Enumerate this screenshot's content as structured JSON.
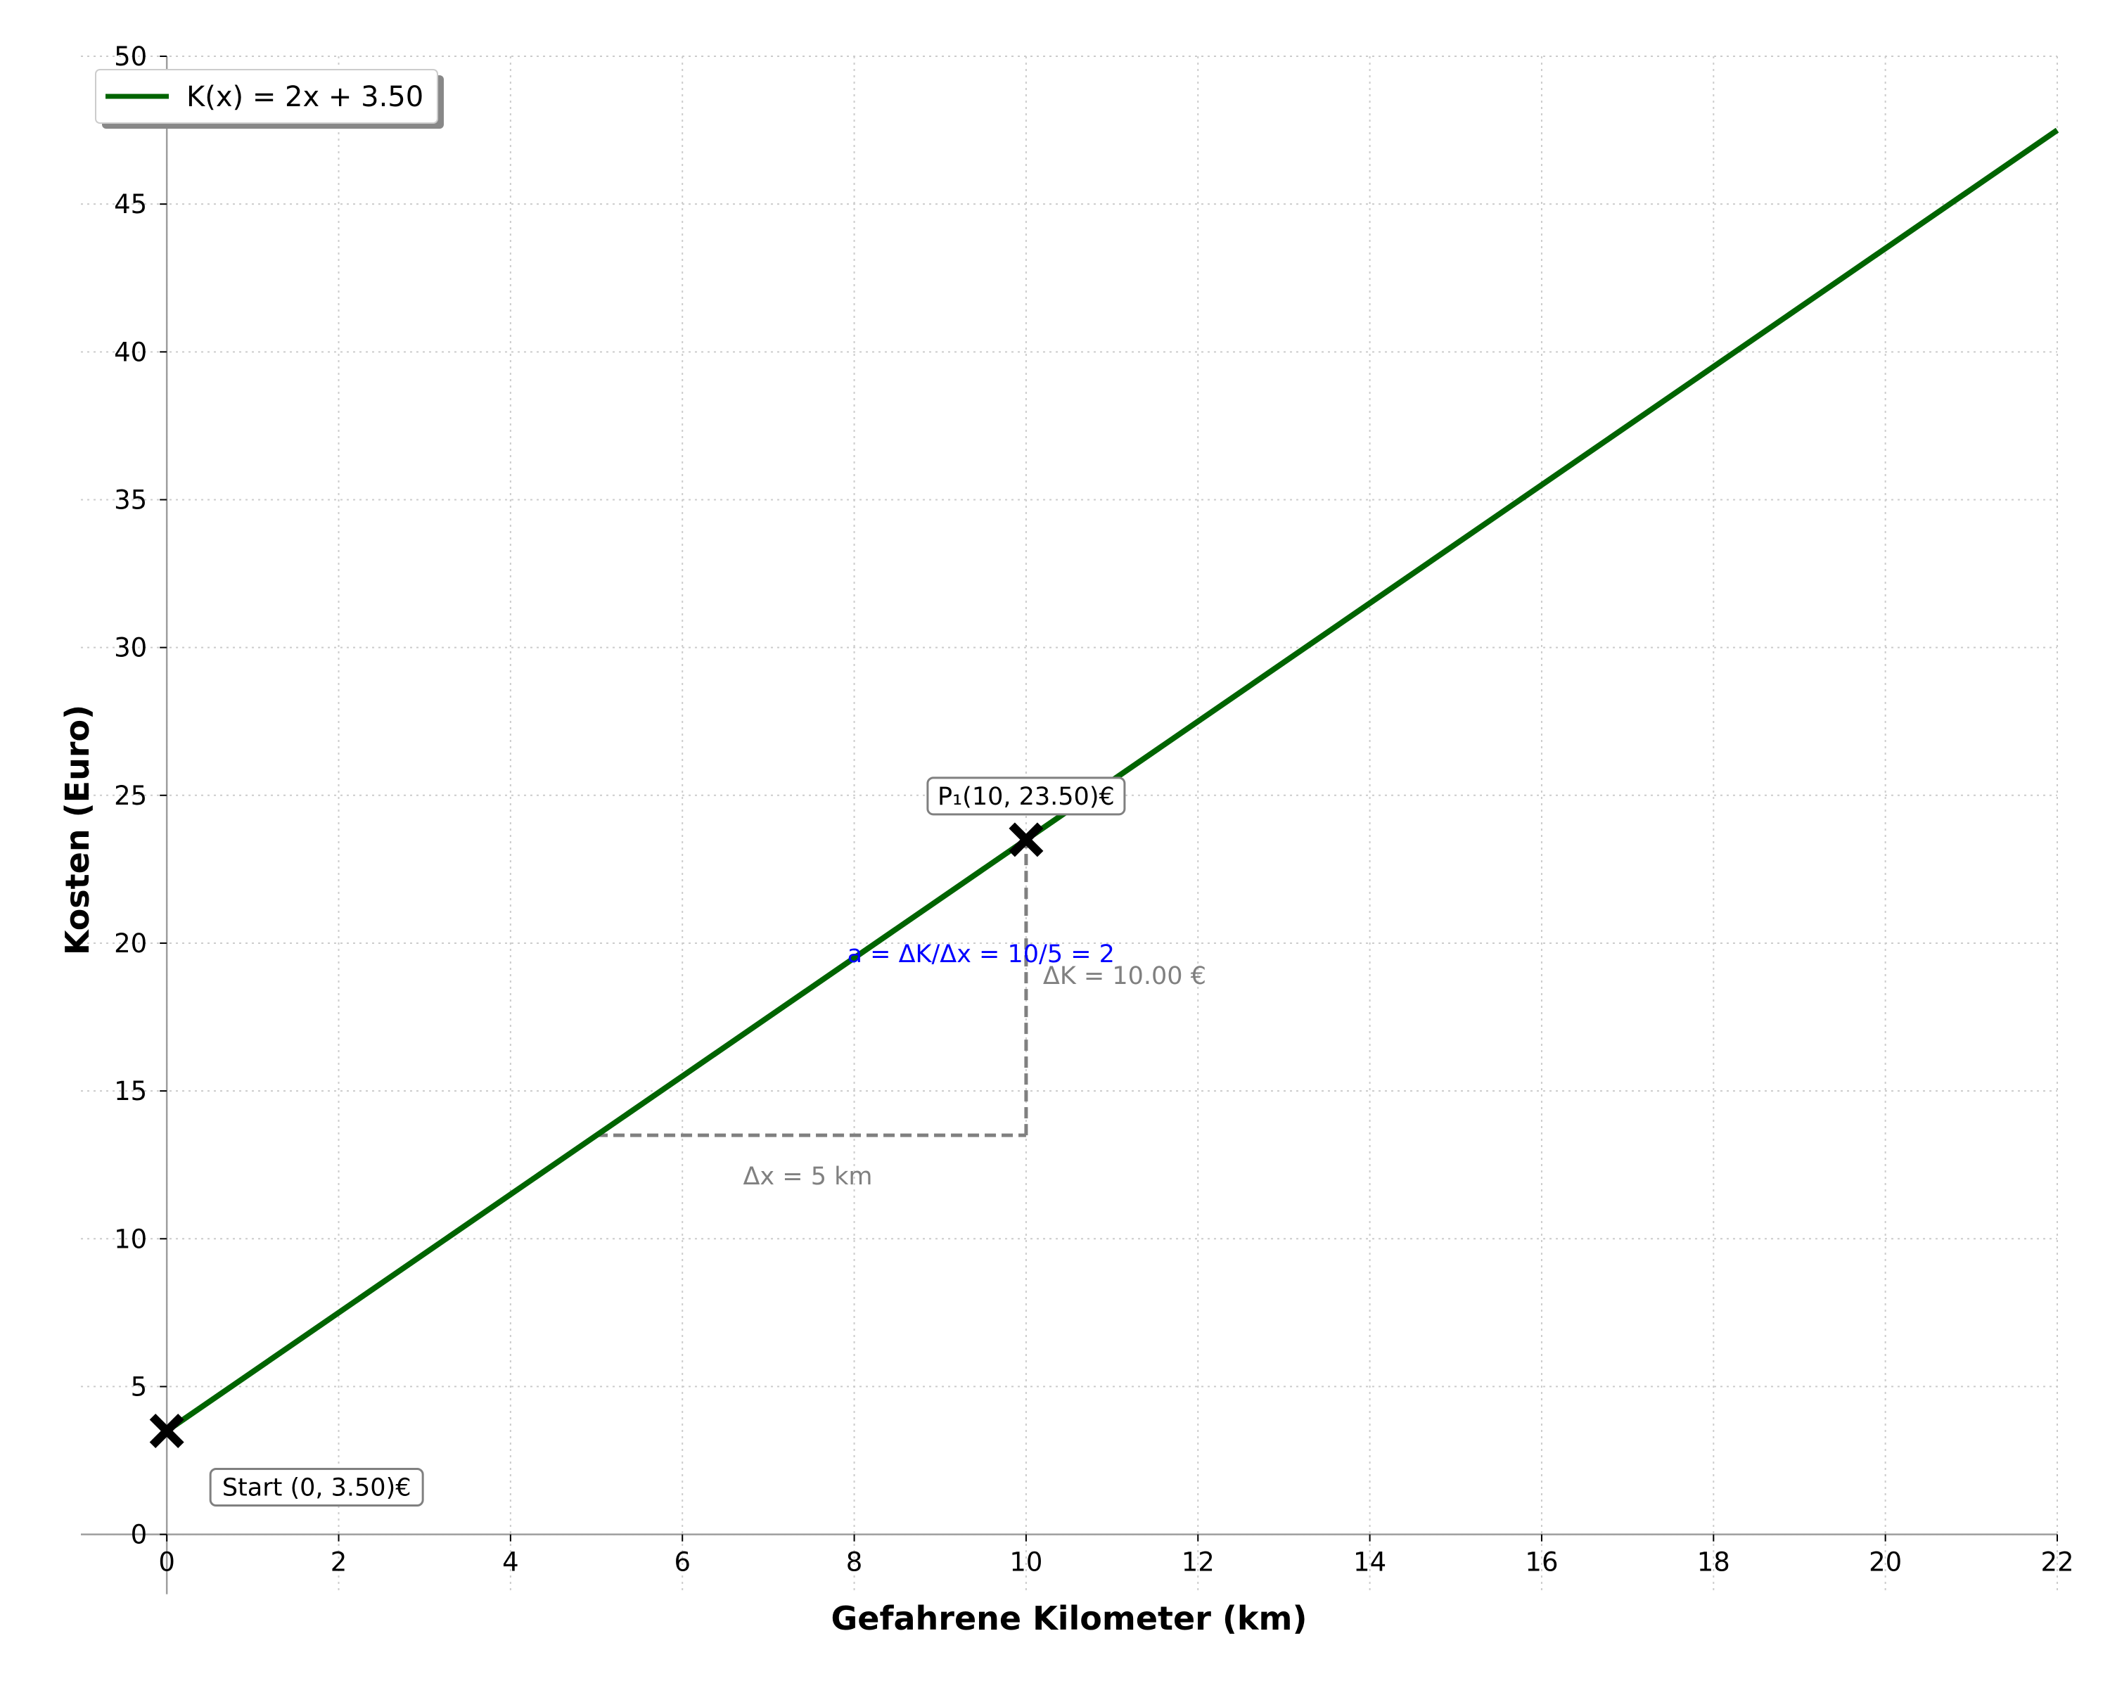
{
  "chart_data": {
    "type": "line",
    "xlabel": "Gefahrene Kilometer (km)",
    "ylabel": "Kosten (Euro)",
    "xlim": [
      -1,
      22
    ],
    "ylim": [
      -0.2,
      50
    ],
    "xticks": [
      0,
      2,
      4,
      6,
      8,
      10,
      12,
      14,
      16,
      18,
      20,
      22
    ],
    "yticks": [
      0,
      5,
      10,
      15,
      20,
      25,
      30,
      35,
      40,
      45,
      50
    ],
    "grid": true,
    "legend_position": "top-left",
    "colors": {
      "line": "#006400",
      "marker": "#000000",
      "helper": "#808080",
      "slope_text": "#0000ff",
      "grid": "#cccccc",
      "axis": "#9e9e9e"
    },
    "series": [
      {
        "name": "K(x) = 2x + 3.50",
        "slope": 2,
        "intercept": 3.5,
        "x": [
          0,
          22
        ],
        "y": [
          3.5,
          47.5
        ]
      }
    ],
    "points": [
      {
        "x": 0,
        "y": 3.5,
        "label": "Start (0, 3.50)€"
      },
      {
        "x": 10,
        "y": 23.5,
        "label": "P₁(10, 23.50)€"
      }
    ],
    "slope_triangle": {
      "x_from": 5,
      "x_to": 10,
      "y_from": 13.5,
      "y_to": 23.5,
      "dx_label": "Δx = 5 km",
      "dk_label": "ΔK = 10.00 €",
      "slope_label": "a = ΔK/Δx = 10/5 = 2"
    }
  }
}
